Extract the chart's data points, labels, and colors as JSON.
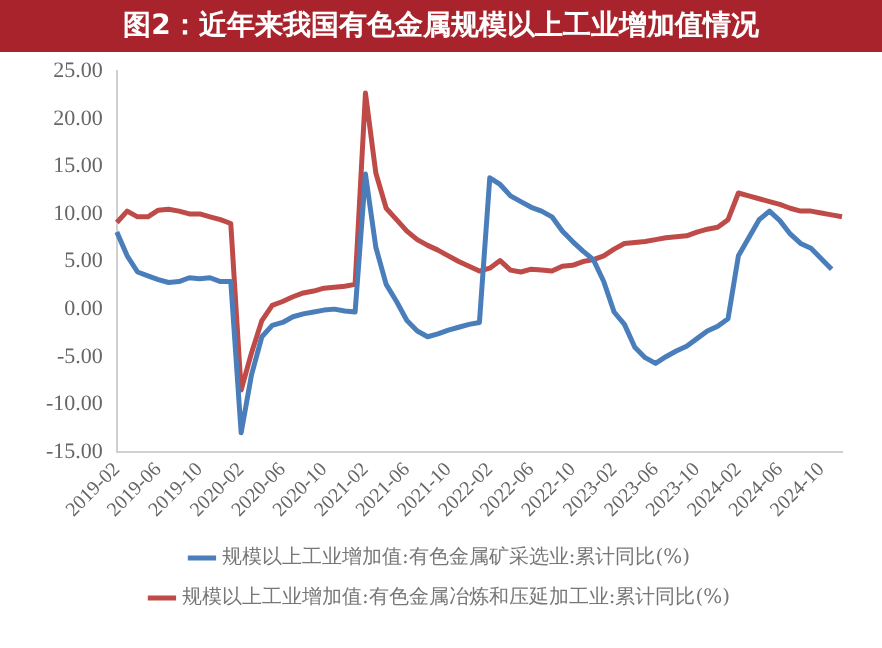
{
  "chart_data": {
    "type": "line",
    "title": "图2：近年来我国有色金属规模以上工业增加值情况",
    "categories": [
      "2019-02",
      null,
      null,
      null,
      "2019-06",
      null,
      null,
      null,
      "2019-10",
      null,
      null,
      null,
      "2020-02",
      null,
      null,
      null,
      "2020-06",
      null,
      null,
      null,
      "2020-10",
      null,
      null,
      null,
      "2021-02",
      null,
      null,
      null,
      "2021-06",
      null,
      null,
      null,
      "2021-10",
      null,
      null,
      null,
      "2022-02",
      null,
      null,
      null,
      "2022-06",
      null,
      null,
      null,
      "2022-10",
      null,
      null,
      null,
      "2023-02",
      null,
      null,
      null,
      "2023-06",
      null,
      null,
      null,
      "2023-10",
      null,
      null,
      null,
      "2024-02",
      null,
      null,
      null,
      "2024-06",
      null,
      null,
      null,
      "2024-10",
      null,
      null
    ],
    "series": [
      {
        "name": "规模以上工业增加值:有色金属矿采选业:累计同比(%)",
        "color": "#4a7ebb",
        "values": [
          8.1,
          5.6,
          3.9,
          3.5,
          3.1,
          2.8,
          2.9,
          3.3,
          3.2,
          3.3,
          2.9,
          2.9,
          -13.0,
          -6.9,
          -2.9,
          -1.7,
          -1.4,
          -0.8,
          -0.5,
          -0.3,
          -0.1,
          0.0,
          -0.2,
          -0.3,
          14.2,
          6.5,
          2.6,
          0.8,
          -1.2,
          -2.3,
          -2.9,
          -2.6,
          -2.2,
          -1.9,
          -1.6,
          -1.4,
          13.8,
          13.1,
          11.9,
          11.3,
          10.7,
          10.3,
          9.7,
          8.2,
          7.1,
          6.1,
          5.2,
          2.9,
          -0.3,
          -1.6,
          -4.0,
          -5.1,
          -5.7,
          -5.0,
          -4.4,
          -3.9,
          -3.1,
          -2.3,
          -1.8,
          -1.0,
          5.6,
          7.5,
          9.4,
          10.3,
          9.3,
          7.9,
          6.9,
          6.4,
          5.3,
          4.2,
          null
        ]
      },
      {
        "name": "规模以上工业增加值:有色金属冶炼和压延加工业:累计同比(%)",
        "color": "#be4b48",
        "values": [
          9.1,
          10.3,
          9.7,
          9.7,
          10.4,
          10.5,
          10.3,
          10.0,
          10.0,
          9.7,
          9.4,
          9.0,
          -8.5,
          -4.6,
          -1.2,
          0.4,
          0.8,
          1.3,
          1.7,
          1.9,
          2.2,
          2.3,
          2.4,
          2.6,
          22.7,
          14.3,
          10.6,
          9.4,
          8.2,
          7.3,
          6.7,
          6.2,
          5.6,
          5.0,
          4.5,
          4.0,
          4.3,
          5.1,
          4.1,
          3.9,
          4.2,
          4.1,
          4.0,
          4.5,
          4.6,
          5.0,
          5.2,
          5.6,
          6.3,
          6.9,
          7.0,
          7.1,
          7.3,
          7.5,
          7.6,
          7.7,
          8.1,
          8.4,
          8.6,
          9.4,
          12.2,
          11.9,
          11.6,
          11.3,
          11.0,
          10.6,
          10.3,
          10.3,
          10.1,
          9.9,
          9.7
        ]
      }
    ],
    "ylim": [
      -15,
      25
    ],
    "yticks": [
      {
        "value": -15,
        "label": "-15.00"
      },
      {
        "value": -10,
        "label": "-10.00"
      },
      {
        "value": -5,
        "label": "-5.00"
      },
      {
        "value": 0,
        "label": "0.00"
      },
      {
        "value": 5,
        "label": "5.00"
      },
      {
        "value": 10,
        "label": "10.00"
      },
      {
        "value": 15,
        "label": "15.00"
      },
      {
        "value": 20,
        "label": "20.00"
      },
      {
        "value": 25,
        "label": "25.00"
      }
    ],
    "grid": false,
    "legend": "bottom",
    "marker": "none",
    "line_style": "solid"
  }
}
